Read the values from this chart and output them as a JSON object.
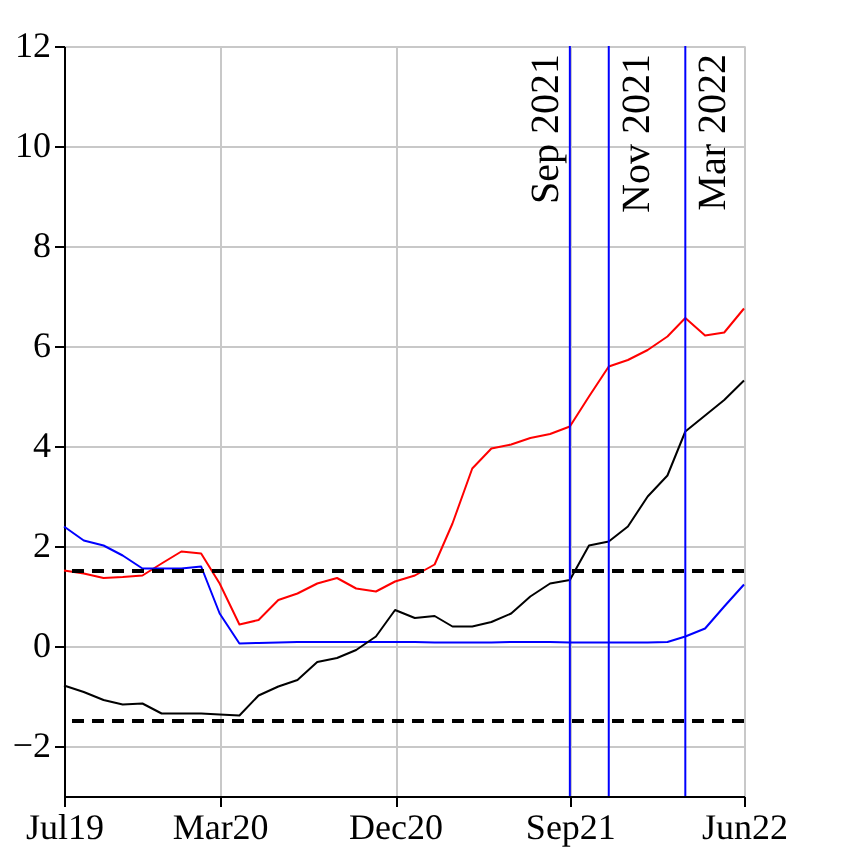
{
  "chart_data": {
    "type": "line",
    "x": [
      "2019-07",
      "2019-08",
      "2019-09",
      "2019-10",
      "2019-11",
      "2019-12",
      "2020-01",
      "2020-02",
      "2020-03",
      "2020-04",
      "2020-05",
      "2020-06",
      "2020-07",
      "2020-08",
      "2020-09",
      "2020-10",
      "2020-11",
      "2020-12",
      "2021-01",
      "2021-02",
      "2021-03",
      "2021-04",
      "2021-05",
      "2021-06",
      "2021-07",
      "2021-08",
      "2021-09",
      "2021-10",
      "2021-11",
      "2021-12",
      "2022-01",
      "2022-02",
      "2022-03",
      "2022-04",
      "2022-05",
      "2022-06"
    ],
    "series": [
      {
        "color": "#ff0000",
        "values": [
          1.51,
          1.45,
          1.36,
          1.38,
          1.41,
          1.65,
          1.89,
          1.85,
          1.25,
          0.43,
          0.52,
          0.92,
          1.05,
          1.25,
          1.36,
          1.15,
          1.09,
          1.29,
          1.41,
          1.63,
          2.45,
          3.55,
          3.95,
          4.03,
          4.16,
          4.24,
          4.39,
          4.99,
          5.59,
          5.72,
          5.92,
          6.19,
          6.56,
          6.21,
          6.27,
          6.75
        ]
      },
      {
        "color": "#0000ff",
        "values": [
          2.39,
          2.11,
          2.01,
          1.81,
          1.55,
          1.55,
          1.55,
          1.59,
          0.65,
          0.05,
          0.06,
          0.07,
          0.08,
          0.08,
          0.08,
          0.08,
          0.08,
          0.08,
          0.08,
          0.07,
          0.07,
          0.07,
          0.07,
          0.08,
          0.08,
          0.08,
          0.07,
          0.07,
          0.07,
          0.07,
          0.07,
          0.08,
          0.19,
          0.35,
          0.79,
          1.23
        ]
      },
      {
        "color": "#000000",
        "values": [
          -0.79,
          -0.92,
          -1.08,
          -1.17,
          -1.15,
          -1.35,
          -1.35,
          -1.35,
          -1.37,
          -1.39,
          -0.99,
          -0.81,
          -0.68,
          -0.32,
          -0.24,
          -0.08,
          0.19,
          0.72,
          0.56,
          0.6,
          0.39,
          0.39,
          0.48,
          0.65,
          0.99,
          1.25,
          1.32,
          2.01,
          2.09,
          2.39,
          2.99,
          3.41,
          4.29,
          4.61,
          4.92,
          5.31
        ]
      }
    ],
    "xlim": [
      "2019-07",
      "2022-06"
    ],
    "xticks": [
      {
        "value": "2019-07",
        "label": "Jul19"
      },
      {
        "value": "2020-03",
        "label": "Mar20"
      },
      {
        "value": "2020-12",
        "label": "Dec20"
      },
      {
        "value": "2021-09",
        "label": "Sep21"
      },
      {
        "value": "2022-06",
        "label": "Jun22"
      }
    ],
    "ylim": [
      -3,
      12
    ],
    "yticks": [
      -2,
      0,
      2,
      4,
      6,
      8,
      10,
      12
    ],
    "ref_lines": [
      {
        "axis": "y",
        "value": 1.5,
        "color": "#000000",
        "line_style": "dashed"
      },
      {
        "axis": "y",
        "value": -1.5,
        "color": "#000000",
        "line_style": "dashed"
      },
      {
        "axis": "x",
        "value": "2021-09",
        "label": "Sep 2021",
        "color": "#0000ff",
        "line_style": "solid"
      },
      {
        "axis": "x",
        "value": "2021-11",
        "label": "Nov 2021",
        "color": "#0000ff",
        "line_style": "solid"
      },
      {
        "axis": "x",
        "value": "2022-03",
        "label": "Mar 2022",
        "color": "#0000ff",
        "line_style": "solid"
      }
    ],
    "grid": true,
    "legend": false,
    "marker": "none",
    "line_style": "solid"
  }
}
